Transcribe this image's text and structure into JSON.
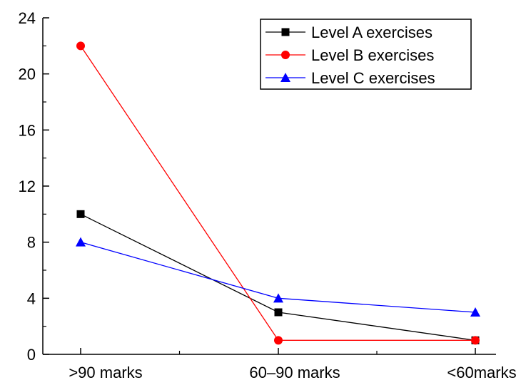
{
  "chart_data": {
    "type": "line",
    "categories": [
      ">90 marks",
      "60–90 marks",
      "<60marks"
    ],
    "ylim": [
      0,
      24
    ],
    "yticks": [
      0,
      4,
      8,
      12,
      16,
      20,
      24
    ],
    "title": "",
    "xlabel": "",
    "ylabel": "",
    "legend_position": "top-right",
    "grid": false,
    "series": [
      {
        "name": "Level A exercises",
        "values": [
          10,
          3,
          1
        ],
        "color": "#000000",
        "marker": "square"
      },
      {
        "name": "Level B exercises",
        "values": [
          22,
          1,
          1
        ],
        "color": "#ff0000",
        "marker": "circle"
      },
      {
        "name": "Level C exercises",
        "values": [
          8,
          4,
          3
        ],
        "color": "#0000ff",
        "marker": "triangle"
      }
    ]
  }
}
